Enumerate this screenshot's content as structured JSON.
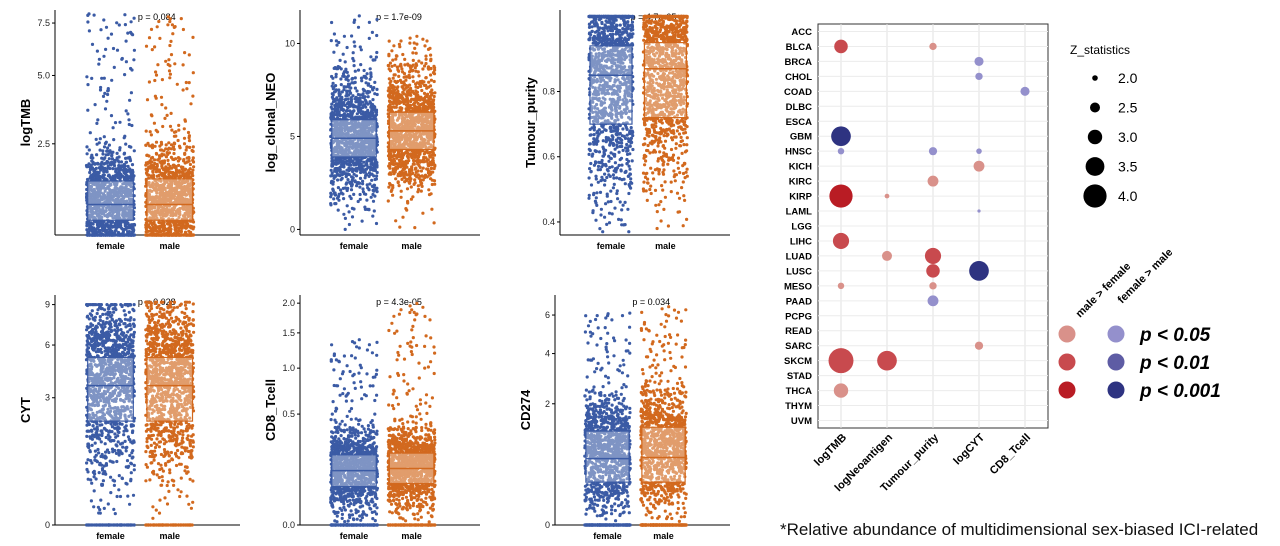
{
  "chart_data": [
    {
      "type": "scatter",
      "title": "",
      "ylabel": "logTMB",
      "pvalue": "p = 0.084",
      "categories": [
        "female",
        "male"
      ],
      "yticks": [
        "2.5",
        "5.0",
        "7.5"
      ],
      "ytick_values": [
        2.5,
        5.0,
        7.5
      ],
      "ylim": [
        0.5,
        8.2
      ],
      "scale": "sqrt",
      "series": [
        {
          "name": "female",
          "color": "#3B5BA5",
          "median": 1.0,
          "q1": 0.72,
          "q3": 1.5,
          "min": 0.5,
          "max": 8.0
        },
        {
          "name": "male",
          "color": "#D2691E",
          "median": 1.0,
          "q1": 0.72,
          "q3": 1.55,
          "min": 0.5,
          "max": 8.0
        }
      ]
    },
    {
      "type": "scatter",
      "ylabel": "log_clonal_NEO",
      "pvalue": "p = 1.7e-09",
      "categories": [
        "female",
        "male"
      ],
      "yticks": [
        "0",
        "5",
        "10"
      ],
      "ytick_values": [
        0,
        5,
        10
      ],
      "ylim": [
        -0.3,
        11.8
      ],
      "scale": "linear",
      "series": [
        {
          "name": "female",
          "color": "#3B5BA5",
          "median": 4.9,
          "q1": 3.9,
          "q3": 5.9,
          "min": 0,
          "max": 11.5
        },
        {
          "name": "male",
          "color": "#D2691E",
          "median": 5.3,
          "q1": 4.3,
          "q3": 6.3,
          "min": 0,
          "max": 10.4
        }
      ]
    },
    {
      "type": "scatter",
      "ylabel": "Tumour_purity",
      "pvalue": "p = 4.7e-05",
      "categories": [
        "female",
        "male"
      ],
      "yticks": [
        "0.4",
        "0.6",
        "0.8"
      ],
      "ytick_values": [
        0.4,
        0.6,
        0.8
      ],
      "ylim": [
        0.36,
        1.05
      ],
      "scale": "linear",
      "series": [
        {
          "name": "female",
          "color": "#3B5BA5",
          "median": 0.85,
          "q1": 0.7,
          "q3": 0.94,
          "min": 0.37,
          "max": 1.03
        },
        {
          "name": "male",
          "color": "#D2691E",
          "median": 0.87,
          "q1": 0.72,
          "q3": 0.95,
          "min": 0.38,
          "max": 1.03
        }
      ]
    },
    {
      "type": "scatter",
      "ylabel": "CYT",
      "pvalue": "p = 0.028",
      "categories": [
        "female",
        "male"
      ],
      "yticks": [
        "0",
        "3",
        "6",
        "9"
      ],
      "ytick_values": [
        0,
        3,
        6,
        9
      ],
      "ylim": [
        -0.2,
        9.8
      ],
      "scale": "sqrt",
      "series": [
        {
          "name": "female",
          "color": "#3B5BA5",
          "median": 3.6,
          "q1": 2.0,
          "q3": 5.2,
          "min": 0,
          "max": 9.0
        },
        {
          "name": "male",
          "color": "#D2691E",
          "median": 3.6,
          "q1": 2.0,
          "q3": 5.2,
          "min": 0,
          "max": 9.2
        }
      ]
    },
    {
      "type": "scatter",
      "ylabel": "CD8_Tcell",
      "pvalue": "p = 4.3e-05",
      "categories": [
        "female",
        "male"
      ],
      "yticks": [
        "0.0",
        "0.5",
        "1.0",
        "1.5",
        "2.0"
      ],
      "ytick_values": [
        0.0,
        0.5,
        1.0,
        1.5,
        2.0
      ],
      "ylim": [
        -0.02,
        2.15
      ],
      "scale": "sqrt",
      "series": [
        {
          "name": "female",
          "color": "#3B5BA5",
          "median": 0.12,
          "q1": 0.06,
          "q3": 0.2,
          "min": 0,
          "max": 1.4
        },
        {
          "name": "male",
          "color": "#D2691E",
          "median": 0.13,
          "q1": 0.07,
          "q3": 0.21,
          "min": 0,
          "max": 2.0
        }
      ]
    },
    {
      "type": "scatter",
      "ylabel": "CD274",
      "pvalue": "p = 0.034",
      "categories": [
        "female",
        "male"
      ],
      "yticks": [
        "0",
        "2",
        "4",
        "6"
      ],
      "ytick_values": [
        0,
        2,
        4,
        6
      ],
      "ylim": [
        -0.1,
        7.2
      ],
      "scale": "sqrt",
      "series": [
        {
          "name": "female",
          "color": "#3B5BA5",
          "median": 0.6,
          "q1": 0.25,
          "q3": 1.2,
          "min": 0,
          "max": 6.3
        },
        {
          "name": "male",
          "color": "#D2691E",
          "median": 0.62,
          "q1": 0.25,
          "q3": 1.3,
          "min": 0,
          "max": 6.5
        }
      ]
    },
    {
      "type": "scatter",
      "subtype": "bubble",
      "title": "",
      "x_categories": [
        "logTMB",
        "logNeoantigen",
        "Tumour_purity",
        "logCYT",
        "CD8_Tcell"
      ],
      "y_categories": [
        "ACC",
        "BLCA",
        "BRCA",
        "CHOL",
        "COAD",
        "DLBC",
        "ESCA",
        "GBM",
        "HNSC",
        "KICH",
        "KIRC",
        "KIRP",
        "LAML",
        "LGG",
        "LIHC",
        "LUAD",
        "LUSC",
        "MESO",
        "PAAD",
        "PCPG",
        "READ",
        "SARC",
        "SKCM",
        "STAD",
        "THCA",
        "THYM",
        "UVM"
      ],
      "size_legend_title": "Z_statistics",
      "size_legend": [
        2.0,
        2.5,
        3.0,
        3.5,
        4.0
      ],
      "size_legend_labels": [
        "2.0",
        "2.5",
        "3.0",
        "3.5",
        "4.0"
      ],
      "color_legend": {
        "direction_labels": [
          "male > female",
          "female > male"
        ],
        "significance_labels": [
          "p < 0.05",
          "p < 0.01",
          "p < 0.001"
        ],
        "male_colors": [
          "#D9918A",
          "#C84A4E",
          "#B91C24"
        ],
        "female_colors": [
          "#9490CC",
          "#5E5CA4",
          "#2E3381"
        ]
      },
      "points": [
        {
          "x": "logTMB",
          "y": "BLCA",
          "z": 2.9,
          "direction": "male",
          "sig": 2
        },
        {
          "x": "Tumour_purity",
          "y": "BLCA",
          "z": 2.2,
          "direction": "male",
          "sig": 1
        },
        {
          "x": "logCYT",
          "y": "BRCA",
          "z": 2.4,
          "direction": "female",
          "sig": 1
        },
        {
          "x": "logCYT",
          "y": "CHOL",
          "z": 2.2,
          "direction": "female",
          "sig": 1
        },
        {
          "x": "CD8_Tcell",
          "y": "COAD",
          "z": 2.4,
          "direction": "female",
          "sig": 1
        },
        {
          "x": "logTMB",
          "y": "GBM",
          "z": 3.6,
          "direction": "female",
          "sig": 3
        },
        {
          "x": "logTMB",
          "y": "HNSC",
          "z": 2.1,
          "direction": "female",
          "sig": 1
        },
        {
          "x": "Tumour_purity",
          "y": "HNSC",
          "z": 2.3,
          "direction": "female",
          "sig": 1
        },
        {
          "x": "logCYT",
          "y": "HNSC",
          "z": 2.0,
          "direction": "female",
          "sig": 1
        },
        {
          "x": "logCYT",
          "y": "KICH",
          "z": 2.6,
          "direction": "male",
          "sig": 1
        },
        {
          "x": "Tumour_purity",
          "y": "KIRC",
          "z": 2.6,
          "direction": "male",
          "sig": 1
        },
        {
          "x": "logTMB",
          "y": "KIRP",
          "z": 4.0,
          "direction": "male",
          "sig": 3
        },
        {
          "x": "logNeoantigen",
          "y": "KIRP",
          "z": 1.9,
          "direction": "male",
          "sig": 1
        },
        {
          "x": "logCYT",
          "y": "LAML",
          "z": 1.7,
          "direction": "female",
          "sig": 1
        },
        {
          "x": "logTMB",
          "y": "LIHC",
          "z": 3.2,
          "direction": "male",
          "sig": 2
        },
        {
          "x": "logNeoantigen",
          "y": "LUAD",
          "z": 2.5,
          "direction": "male",
          "sig": 1
        },
        {
          "x": "Tumour_purity",
          "y": "LUAD",
          "z": 3.2,
          "direction": "male",
          "sig": 2
        },
        {
          "x": "Tumour_purity",
          "y": "LUSC",
          "z": 2.9,
          "direction": "male",
          "sig": 2
        },
        {
          "x": "logCYT",
          "y": "LUSC",
          "z": 3.6,
          "direction": "female",
          "sig": 3
        },
        {
          "x": "logTMB",
          "y": "MESO",
          "z": 2.1,
          "direction": "male",
          "sig": 1
        },
        {
          "x": "Tumour_purity",
          "y": "MESO",
          "z": 2.2,
          "direction": "male",
          "sig": 1
        },
        {
          "x": "Tumour_purity",
          "y": "PAAD",
          "z": 2.6,
          "direction": "female",
          "sig": 1
        },
        {
          "x": "logCYT",
          "y": "SARC",
          "z": 2.3,
          "direction": "male",
          "sig": 1
        },
        {
          "x": "logTMB",
          "y": "SKCM",
          "z": 4.2,
          "direction": "male",
          "sig": 2
        },
        {
          "x": "logNeoantigen",
          "y": "SKCM",
          "z": 3.6,
          "direction": "male",
          "sig": 2
        },
        {
          "x": "logTMB",
          "y": "THCA",
          "z": 3.0,
          "direction": "male",
          "sig": 1
        }
      ]
    }
  ],
  "footer": {
    "caption": "*Relative abundance of multidimensional sex-biased ICI-related"
  }
}
